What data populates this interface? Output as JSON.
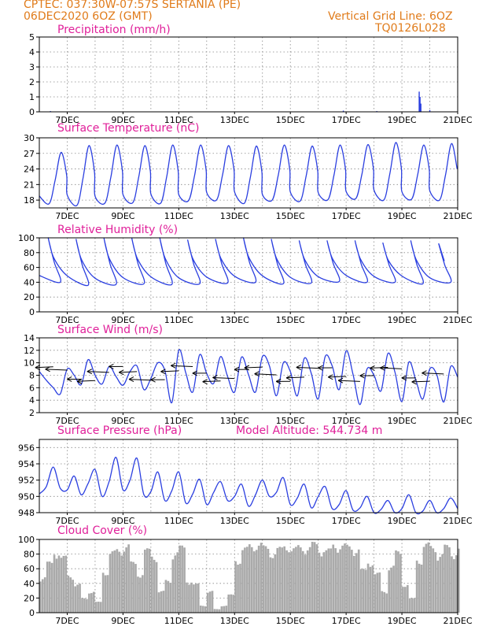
{
  "header": {
    "line1_left": "CPTEC:   037:30W-07:57S   SERTANIA (PE)",
    "line2_left": "06DEC2020 6OZ (GMT)",
    "line1_right": "Vertical Grid Line: 6OZ",
    "line2_right": "TQ0126L028"
  },
  "colors": {
    "line": "#2b3fe0",
    "title": "#e0209a",
    "header": "#e07b1a",
    "cloud": "#aaaaaa",
    "grid": "#888888"
  },
  "chart_data": [
    {
      "type": "bar",
      "id": "precip",
      "title": "Precipitation (mm/h)",
      "x_range_days": [
        6.0,
        21.0
      ],
      "ylim": [
        0,
        5
      ],
      "yticks": [
        "0",
        "1",
        "2",
        "3",
        "4",
        "5"
      ],
      "xticks": [
        "7DEC",
        "9DEC",
        "11DEC",
        "13DEC",
        "15DEC",
        "17DEC",
        "19DEC",
        "21DEC"
      ],
      "x_days": [
        6.4,
        12.0,
        16.9,
        18.1,
        19.62,
        19.65,
        19.68,
        20.0
      ],
      "values": [
        0.05,
        0.02,
        0.08,
        0.05,
        1.35,
        1.0,
        0.55,
        0.12
      ]
    },
    {
      "type": "line",
      "id": "temp",
      "title": "Surface Temperature (nC)",
      "x_range_days": [
        6.0,
        21.0
      ],
      "ylim": [
        16.5,
        30
      ],
      "yticks": [
        "18",
        "21",
        "24",
        "27",
        "30"
      ],
      "xticks": [
        "7DEC",
        "9DEC",
        "11DEC",
        "13DEC",
        "15DEC",
        "17DEC",
        "19DEC",
        "21DEC"
      ],
      "daily_max": [
        27.2,
        28.5,
        28.6,
        28.5,
        28.6,
        28.6,
        28.5,
        28.4,
        28.6,
        28.4,
        28.6,
        28.7,
        29.1,
        28.6,
        28.9
      ],
      "daily_min": [
        17.3,
        17.0,
        17.4,
        17.5,
        17.4,
        17.9,
        18.0,
        17.4,
        18.0,
        17.8,
        18.1,
        18.3,
        18.0,
        18.2,
        18.0
      ]
    },
    {
      "type": "line",
      "id": "rh",
      "title": "Relative Humidity (%)",
      "x_range_days": [
        6.0,
        21.0
      ],
      "ylim": [
        0,
        100
      ],
      "yticks": [
        "0",
        "20",
        "40",
        "60",
        "80",
        "100"
      ],
      "xticks": [
        "7DEC",
        "9DEC",
        "11DEC",
        "13DEC",
        "15DEC",
        "17DEC",
        "19DEC",
        "21DEC"
      ],
      "daily_max": [
        100,
        98,
        99,
        99,
        100,
        97,
        98,
        100,
        98,
        96,
        96,
        96,
        93,
        96,
        92
      ],
      "daily_min": [
        40,
        36,
        37,
        38,
        37,
        38,
        39,
        40,
        38,
        39,
        41,
        40,
        40,
        38,
        40
      ]
    },
    {
      "type": "line",
      "id": "wind",
      "title": "Surface Wind (m/s)",
      "x_range_days": [
        6.0,
        21.0
      ],
      "ylim": [
        2,
        14
      ],
      "yticks": [
        "2",
        "4",
        "6",
        "8",
        "10",
        "12",
        "14"
      ],
      "xticks": [
        "7DEC",
        "9DEC",
        "11DEC",
        "13DEC",
        "15DEC",
        "17DEC",
        "19DEC",
        "21DEC"
      ],
      "speed_6h": [
        8.6,
        7.2,
        6.0,
        5.0,
        9.0,
        8.0,
        6.5,
        10.5,
        8.0,
        6.6,
        9.4,
        7.8,
        6.4,
        8.6,
        9.5,
        5.7,
        7.5,
        10.0,
        8.8,
        3.6,
        12.0,
        8.4,
        5.3,
        11.3,
        8.3,
        6.7,
        11.0,
        7.8,
        5.3,
        10.9,
        8.1,
        5.3,
        11.0,
        9.5,
        4.7,
        10.0,
        8.6,
        4.7,
        10.7,
        8.3,
        4.2,
        11.0,
        9.5,
        5.7,
        11.9,
        8.1,
        3.3,
        9.0,
        8.0,
        5.5,
        11.5,
        8.5,
        3.8,
        10.1,
        7.2,
        4.2,
        9.0,
        8.1,
        3.7,
        9.4,
        7.7
      ]
    },
    {
      "type": "line",
      "id": "pressure",
      "title": "Surface Pressure (hPa)",
      "annotation": "Model Altitude: 544.734 m",
      "x_range_days": [
        6.0,
        21.0
      ],
      "ylim": [
        948,
        957
      ],
      "yticks": [
        "948",
        "950",
        "952",
        "954",
        "956"
      ],
      "xticks": [
        "7DEC",
        "9DEC",
        "11DEC",
        "13DEC",
        "15DEC",
        "17DEC",
        "19DEC",
        "21DEC"
      ],
      "values_6h": [
        950.3,
        951.2,
        953.6,
        951.0,
        950.8,
        952.5,
        950.2,
        951.6,
        953.3,
        950.0,
        951.8,
        954.8,
        950.8,
        952.0,
        954.7,
        950.2,
        950.6,
        953.0,
        949.5,
        950.7,
        953.0,
        949.2,
        950.3,
        952.1,
        949.0,
        950.5,
        951.8,
        949.5,
        950.0,
        951.5,
        948.8,
        950.2,
        952.0,
        950.0,
        950.5,
        952.3,
        949.0,
        949.8,
        951.5,
        948.6,
        950.0,
        951.2,
        948.5,
        949.0,
        950.7,
        948.3,
        948.6,
        950.0,
        948.0,
        948.4,
        949.5,
        947.9,
        948.5,
        950.2,
        947.8,
        948.2,
        949.5,
        947.9,
        948.5,
        949.8,
        948.5
      ]
    },
    {
      "type": "area",
      "id": "cloud",
      "title": "Cloud Cover (%)",
      "x_range_days": [
        6.0,
        21.0
      ],
      "ylim": [
        0,
        100
      ],
      "yticks": [
        "0",
        "20",
        "40",
        "60",
        "80",
        "100"
      ],
      "xticks": [
        "7DEC",
        "9DEC",
        "11DEC",
        "13DEC",
        "15DEC",
        "17DEC",
        "19DEC",
        "21DEC"
      ],
      "values_6h": [
        50,
        70,
        86,
        78,
        52,
        40,
        20,
        30,
        15,
        58,
        85,
        88,
        95,
        70,
        55,
        88,
        80,
        30,
        45,
        85,
        92,
        45,
        40,
        10,
        30,
        5,
        10,
        25,
        75,
        90,
        95,
        97,
        92,
        85,
        90,
        95,
        90,
        93,
        92,
        97,
        90,
        88,
        96,
        95,
        93,
        90,
        60,
        72,
        55,
        30,
        65,
        85,
        40,
        20,
        75,
        96,
        92,
        82,
        93,
        85,
        90
      ]
    }
  ]
}
